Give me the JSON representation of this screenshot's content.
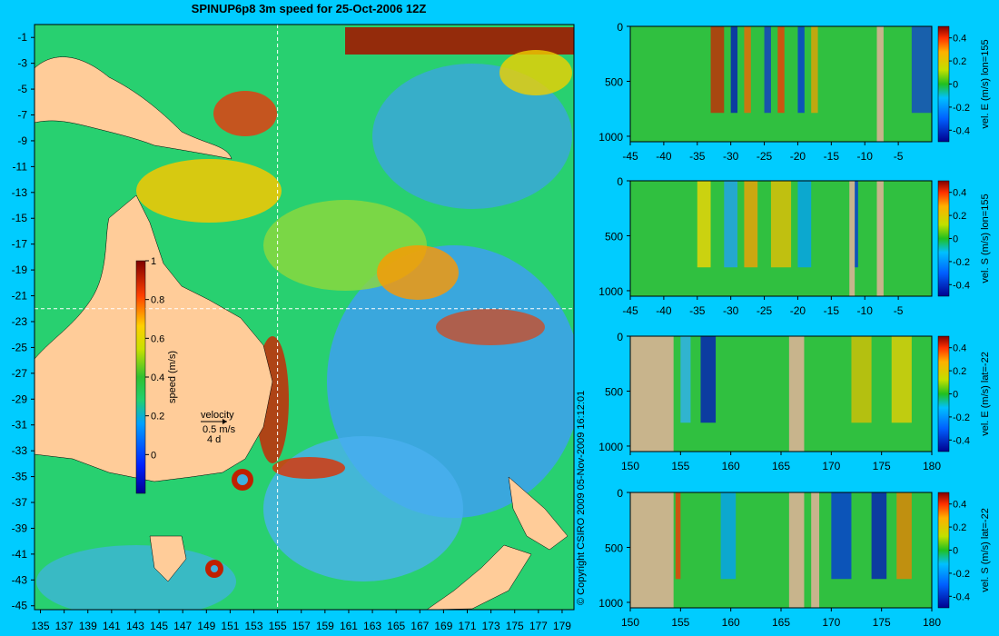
{
  "title": "SPINUP6p8 3m speed for 25-Oct-2006 12Z",
  "copyright": "© Copyright CSIRO 2009   05-Nov-2009 16:12:01",
  "colors": {
    "background": "#00ccff",
    "land": "#ffcc99",
    "mask": "#c8b48c"
  },
  "map": {
    "x_ticks": [
      "135",
      "137",
      "139",
      "141",
      "143",
      "145",
      "147",
      "149",
      "151",
      "153",
      "155",
      "157",
      "159",
      "161",
      "163",
      "165",
      "167",
      "169",
      "171",
      "173",
      "175",
      "177",
      "179"
    ],
    "y_ticks": [
      "-1",
      "-3",
      "-5",
      "-7",
      "-9",
      "-11",
      "-13",
      "-15",
      "-17",
      "-19",
      "-21",
      "-23",
      "-25",
      "-27",
      "-29",
      "-31",
      "-33",
      "-35",
      "-37",
      "-39",
      "-41",
      "-43",
      "-45"
    ],
    "colorbar": {
      "label": "speed (m/s)",
      "ticks": [
        "1",
        "0.8",
        "0.6",
        "0.4",
        "0.2",
        "0"
      ],
      "range": [
        -0.2,
        1
      ]
    },
    "velocity_key": {
      "label": "velocity",
      "speed": "0.5 m/s",
      "duration": "4 d"
    },
    "crosshair": {
      "lon": 155,
      "lat": -22
    }
  },
  "chart_data": [
    {
      "type": "heatmap",
      "name": "vel. E (m/s) lon=155",
      "x_ticks": [
        "-45",
        "-40",
        "-35",
        "-30",
        "-25",
        "-20",
        "-15",
        "-10",
        "-5"
      ],
      "y_ticks": [
        "0",
        "500",
        "1000"
      ],
      "colorbar_ticks": [
        "0.4",
        "0.2",
        "0",
        "-0.2",
        "-0.4"
      ],
      "xlim": [
        -45,
        0
      ],
      "ylim": [
        1050,
        0
      ]
    },
    {
      "type": "heatmap",
      "name": "vel. S (m/s) lon=155",
      "x_ticks": [
        "-45",
        "-40",
        "-35",
        "-30",
        "-25",
        "-20",
        "-15",
        "-10",
        "-5"
      ],
      "y_ticks": [
        "0",
        "500",
        "1000"
      ],
      "colorbar_ticks": [
        "0.4",
        "0.2",
        "0",
        "-0.2",
        "-0.4"
      ],
      "xlim": [
        -45,
        0
      ],
      "ylim": [
        1050,
        0
      ]
    },
    {
      "type": "heatmap",
      "name": "vel. E (m/s) lat=-22",
      "x_ticks": [
        "150",
        "155",
        "160",
        "165",
        "170",
        "175",
        "180"
      ],
      "y_ticks": [
        "0",
        "500",
        "1000"
      ],
      "colorbar_ticks": [
        "0.4",
        "0.2",
        "0",
        "-0.2",
        "-0.4"
      ],
      "xlim": [
        150,
        180
      ],
      "ylim": [
        1050,
        0
      ]
    },
    {
      "type": "heatmap",
      "name": "vel. S (m/s) lat=-22",
      "x_ticks": [
        "150",
        "155",
        "160",
        "165",
        "170",
        "175",
        "180"
      ],
      "y_ticks": [
        "0",
        "500",
        "1000"
      ],
      "colorbar_ticks": [
        "0.4",
        "0.2",
        "0",
        "-0.2",
        "-0.4"
      ],
      "xlim": [
        150,
        180
      ],
      "ylim": [
        1050,
        0
      ]
    }
  ]
}
